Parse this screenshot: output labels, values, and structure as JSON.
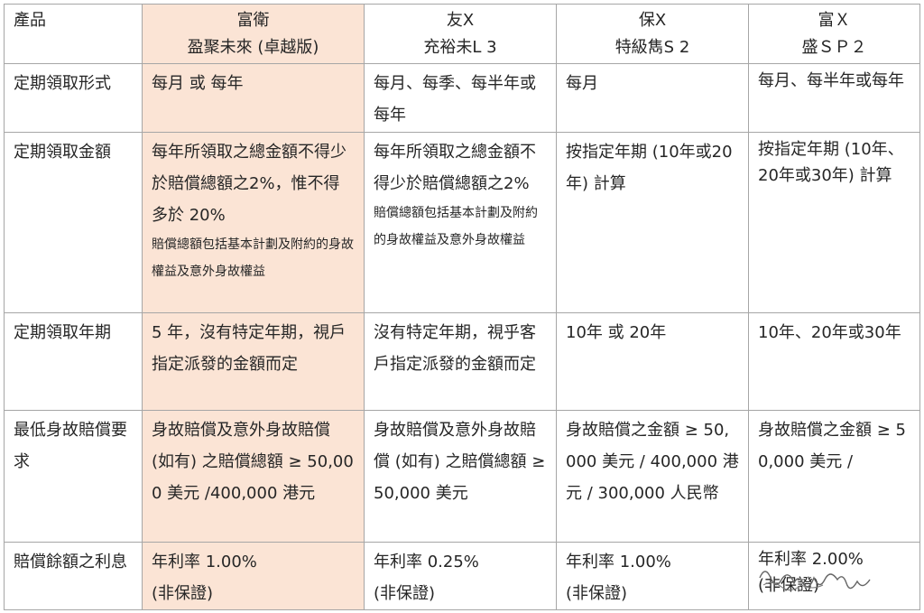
{
  "columns": [
    "產品",
    "富衛\n盈聚未來 (卓越版)",
    "友X\n充裕未L 3",
    "保X\n特級雋S 2",
    "富Ｘ\n盛ＳＰ２"
  ],
  "headers": [
    {
      "line1": "產品",
      "line2": ""
    },
    {
      "line1": "富衛",
      "line2": "盈聚未來 (卓越版)"
    },
    {
      "line1": "友X",
      "line2": "充裕未L 3"
    },
    {
      "line1": "保X",
      "line2": "特級雋S 2"
    },
    {
      "line1": "富Ｘ",
      "line2": "盛ＳＰ２"
    }
  ],
  "rows": [
    {
      "label": "定期領取形式",
      "c1": "每月 或 每年",
      "c2": "每月、每季、每半年或每年",
      "c3": "每月",
      "c4": "每月、每半年或每年"
    },
    {
      "label": "定期領取金額",
      "c1": "每年所領取之總金額不得少於賠償總額之2%，惟不得多於 20%",
      "c1_note": "賠償總額包括基本計劃及附約的身故權益及意外身故權益",
      "c2": "每年所領取之總金額不得少於賠償總額之2%",
      "c2_note": "賠償總額包括基本計劃及附約的身故權益及意外身故權益",
      "c3": "按指定年期 (10年或20年) 計算",
      "c4": "按指定年期 (10年、20年或30年) 計算"
    },
    {
      "label": "定期領取年期",
      "c1": "5 年，沒有特定年期，視戶指定派發的金額而定",
      "c2": "沒有特定年期，視乎客戶指定派發的金額而定",
      "c3": "10年 或 20年",
      "c4": "10年、20年或30年"
    },
    {
      "label": "最低身故賠償要求",
      "c1": "身故賠償及意外身故賠償 (如有) 之賠償總額 ≥ 50,000 美元 /400,000 港元",
      "c2": "身故賠償及意外身故賠償 (如有) 之賠償總額 ≥ 50,000 美元",
      "c3": "身故賠償之金額 ≥ 50,000 美元 / 400,000 港元 / 300,000 人民幣",
      "c4": "身故賠償之金額 ≥ 50,000 美元 /"
    },
    {
      "label": "賠償餘額之利息",
      "c1": "年利率 1.00%",
      "c1_sub": "(非保證)",
      "c2": "年利率 0.25%",
      "c2_sub": "(非保證)",
      "c3": "年利率 1.00%",
      "c3_sub": "(非保證)",
      "c4": "年利率 2.00%",
      "c4_sub": "(非保證)"
    }
  ],
  "colors": {
    "highlight": "#fbe4d5",
    "border": "#a6a6a6"
  }
}
